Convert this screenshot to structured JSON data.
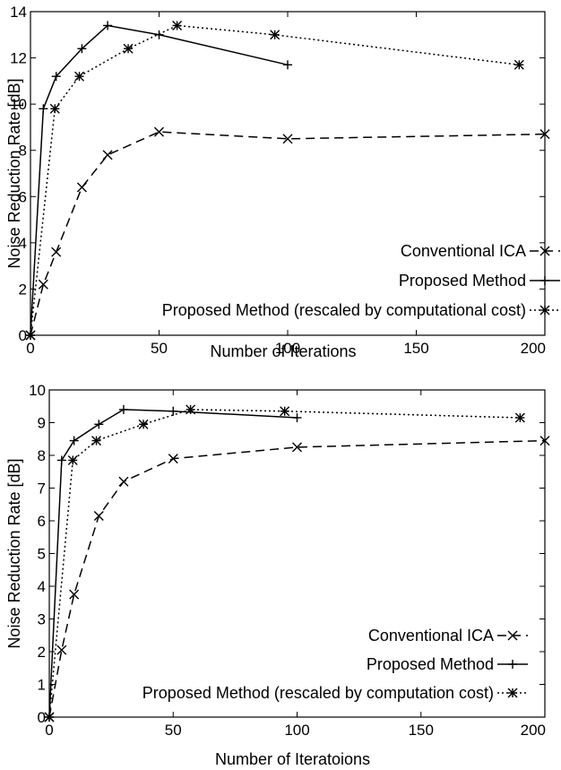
{
  "chart_data": [
    {
      "type": "line",
      "title": "",
      "xlabel": "Number of Iterations",
      "ylabel": "Noise Reduction Rate [dB]",
      "xlim": [
        0,
        200
      ],
      "ylim": [
        0,
        14
      ],
      "xticks": [
        0,
        50,
        100,
        150,
        200
      ],
      "yticks": [
        0,
        2,
        4,
        6,
        8,
        10,
        12,
        14
      ],
      "grid": false,
      "legend_position": "bottom-right",
      "series": [
        {
          "name": "Conventional ICA",
          "style": "dashed",
          "marker": "x",
          "x": [
            0,
            5,
            10,
            20,
            30,
            50,
            100,
            200
          ],
          "y": [
            0,
            2.2,
            3.6,
            6.4,
            7.8,
            8.8,
            8.5,
            8.7
          ]
        },
        {
          "name": "Proposed Method",
          "style": "solid",
          "marker": "+",
          "x": [
            0,
            5,
            10,
            20,
            30,
            50,
            100
          ],
          "y": [
            0,
            9.8,
            11.2,
            12.4,
            13.4,
            13.0,
            11.7
          ]
        },
        {
          "name": "Proposed Method (rescaled by computational cost)",
          "style": "dotted",
          "marker": "*",
          "x": [
            0,
            9.5,
            19,
            38,
            57,
            95,
            190
          ],
          "y": [
            0,
            9.8,
            11.2,
            12.4,
            13.4,
            13.0,
            11.7
          ]
        }
      ]
    },
    {
      "type": "line",
      "title": "",
      "xlabel": "Number of Iteratoions",
      "ylabel": "Noise Reduction Rate [dB]",
      "xlim": [
        0,
        200
      ],
      "ylim": [
        0,
        10
      ],
      "xticks": [
        0,
        50,
        100,
        150,
        200
      ],
      "yticks": [
        0,
        1,
        2,
        3,
        4,
        5,
        6,
        7,
        8,
        9,
        10
      ],
      "grid": false,
      "legend_position": "bottom-right",
      "series": [
        {
          "name": "Conventional ICA",
          "style": "dashed",
          "marker": "x",
          "x": [
            0,
            5,
            10,
            20,
            30,
            50,
            100,
            200
          ],
          "y": [
            0,
            2.05,
            3.75,
            6.15,
            7.2,
            7.9,
            8.25,
            8.45
          ]
        },
        {
          "name": "Proposed Method",
          "style": "solid",
          "marker": "+",
          "x": [
            0,
            5,
            10,
            20,
            30,
            50,
            100
          ],
          "y": [
            0,
            7.85,
            8.45,
            8.95,
            9.4,
            9.35,
            9.15
          ]
        },
        {
          "name": "Proposed Method (rescaled by computation cost)",
          "style": "dotted",
          "marker": "*",
          "x": [
            0,
            9.5,
            19,
            38,
            57,
            95,
            190
          ],
          "y": [
            0,
            7.85,
            8.45,
            8.95,
            9.4,
            9.35,
            9.15
          ]
        }
      ]
    }
  ]
}
